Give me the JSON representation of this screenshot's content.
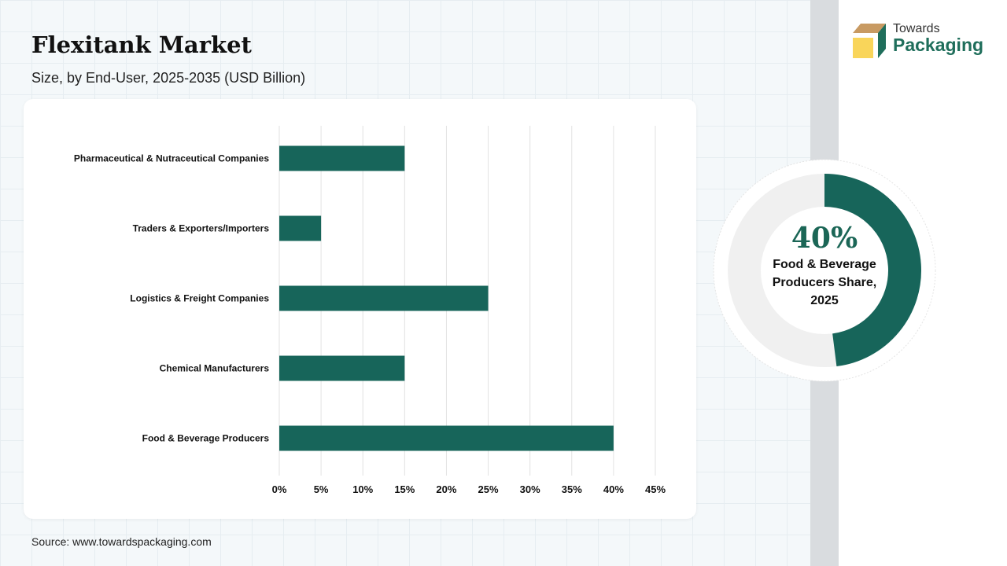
{
  "title": "Flexitank Market",
  "subtitle": "Size, by End-User, 2025-2035 (USD Billion)",
  "source": "Source: www.towardspackaging.com",
  "logo": {
    "line1": "Towards",
    "line2": "Packaging"
  },
  "colors": {
    "bar": "#17655a",
    "track": "#f0f0f0"
  },
  "highlight": {
    "value": "40%",
    "label_lines": [
      "Food & Beverage",
      "Producers Share,",
      "2025"
    ]
  },
  "chart_data": {
    "type": "bar",
    "orientation": "horizontal",
    "categories": [
      "Pharmaceutical & Nutraceutical Companies",
      "Traders & Exporters/Importers",
      "Logistics & Freight Companies",
      "Chemical Manufacturers",
      "Food & Beverage Producers"
    ],
    "values": [
      15,
      5,
      25,
      15,
      40
    ],
    "xlim": [
      0,
      45
    ],
    "xticks": [
      "0%",
      "5%",
      "10%",
      "15%",
      "20%",
      "25%",
      "30%",
      "35%",
      "40%",
      "45%"
    ],
    "grid": true
  }
}
